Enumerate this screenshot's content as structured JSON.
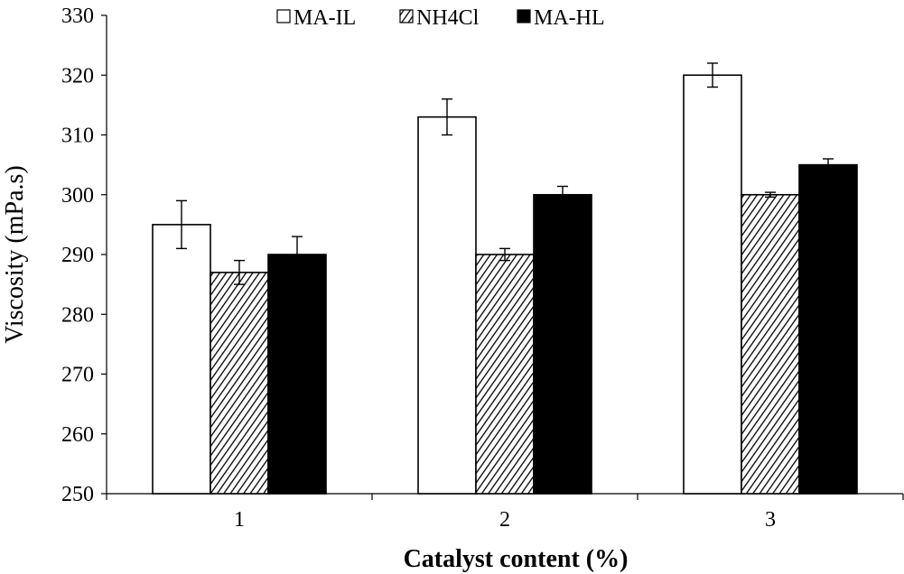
{
  "chart_data": {
    "type": "bar",
    "title": "",
    "xlabel": "Catalyst content (%)",
    "ylabel": "Viscosity (mPa.s)",
    "categories": [
      "1",
      "2",
      "3"
    ],
    "ylim": [
      250,
      330
    ],
    "yticks": [
      250,
      260,
      270,
      280,
      290,
      300,
      310,
      320,
      330
    ],
    "grid": false,
    "legend_position": "top",
    "series": [
      {
        "name": "MA-IL",
        "fill": "white",
        "values": [
          295,
          313,
          320
        ],
        "errors": [
          4,
          3,
          2
        ]
      },
      {
        "name": "NH4Cl",
        "fill": "hatched",
        "values": [
          287,
          290,
          300
        ],
        "errors": [
          2,
          1,
          0.4
        ]
      },
      {
        "name": "MA-HL",
        "fill": "black",
        "values": [
          290,
          300,
          305
        ],
        "errors": [
          3,
          1.4,
          1
        ]
      }
    ]
  }
}
